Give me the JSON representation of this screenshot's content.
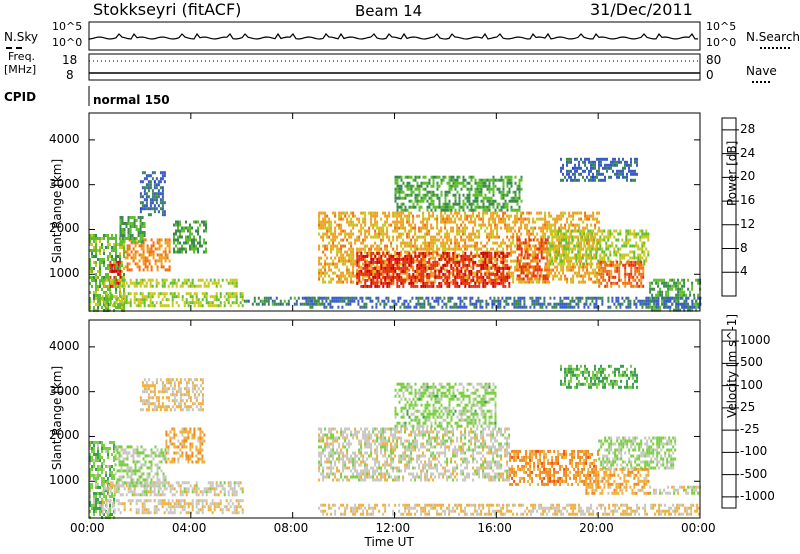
{
  "header": {
    "station": "Stokkseyri (fitACF)",
    "beam": "Beam 14",
    "date": "31/Dec/2011"
  },
  "strips": {
    "nsky_label": "N.Sky",
    "nsky_ticks": [
      "10^5",
      "10^0"
    ],
    "nsearch_label": "N.Search",
    "nsearch_ticks": [
      "10^5",
      "10^0"
    ],
    "freq_label": "Freq.",
    "freq_unit": "[MHz]",
    "freq_ticks": [
      "18",
      "8"
    ],
    "nave_label": "Nave",
    "nave_ticks": [
      "80",
      "0"
    ],
    "cpid_label": "CPID",
    "cpid_value": "normal 150"
  },
  "chart_data": [
    {
      "type": "heatmap",
      "title": "",
      "xlabel": "Time UT",
      "ylabel": "Slant Range [km]",
      "x_ticks": [
        "00:00",
        "04:00",
        "08:00",
        "12:00",
        "16:00",
        "20:00",
        "00:00"
      ],
      "xlim_hours": [
        0,
        24
      ],
      "y_ticks": [
        1000,
        2000,
        3000,
        4000
      ],
      "ylim": [
        180,
        4600
      ],
      "colorbar": {
        "label": "Power [dB]",
        "ticks": [
          "4",
          "8",
          "12",
          "16",
          "20",
          "24",
          "28"
        ],
        "range": [
          0,
          30
        ],
        "colors": [
          "#1a3cf0",
          "#3a5cc8",
          "#3c8a50",
          "#5fbf2e",
          "#c8c820",
          "#f0a020",
          "#f07010",
          "#e83010",
          "#d00000"
        ]
      },
      "regions": [
        {
          "t": [
            0.0,
            1.4
          ],
          "r": [
            200,
            1900
          ],
          "value": 12
        },
        {
          "t": [
            0.8,
            1.2
          ],
          "r": [
            700,
            1300
          ],
          "value": 26
        },
        {
          "t": [
            1.4,
            3.2
          ],
          "r": [
            1100,
            1800
          ],
          "value": 20
        },
        {
          "t": [
            1.2,
            2.2
          ],
          "r": [
            1700,
            2300
          ],
          "value": 10
        },
        {
          "t": [
            2.0,
            3.0
          ],
          "r": [
            2300,
            3300
          ],
          "value": 6
        },
        {
          "t": [
            3.3,
            4.6
          ],
          "r": [
            1500,
            2200
          ],
          "value": 10
        },
        {
          "t": [
            0.5,
            5.8
          ],
          "r": [
            700,
            900
          ],
          "value": 14
        },
        {
          "t": [
            0.5,
            6.0
          ],
          "r": [
            300,
            600
          ],
          "value": 14
        },
        {
          "t": [
            6.0,
            9.0
          ],
          "r": [
            300,
            500
          ],
          "value": 8
        },
        {
          "t": [
            9.0,
            20.0
          ],
          "r": [
            800,
            2400
          ],
          "value": 18
        },
        {
          "t": [
            10.5,
            16.5
          ],
          "r": [
            700,
            1500
          ],
          "value": 26
        },
        {
          "t": [
            16.8,
            18.0
          ],
          "r": [
            900,
            1800
          ],
          "value": 24
        },
        {
          "t": [
            12.0,
            17.0
          ],
          "r": [
            2400,
            3200
          ],
          "value": 10
        },
        {
          "t": [
            18.0,
            22.0
          ],
          "r": [
            1200,
            2000
          ],
          "value": 14
        },
        {
          "t": [
            20.0,
            21.8
          ],
          "r": [
            700,
            1300
          ],
          "value": 22
        },
        {
          "t": [
            22.0,
            24.0
          ],
          "r": [
            200,
            900
          ],
          "value": 10
        },
        {
          "t": [
            18.5,
            21.5
          ],
          "r": [
            3100,
            3600
          ],
          "value": 6
        },
        {
          "t": [
            8.5,
            24.0
          ],
          "r": [
            250,
            500
          ],
          "value": 6
        }
      ]
    },
    {
      "type": "heatmap",
      "title": "",
      "xlabel": "Time UT",
      "ylabel": "Slant Range [km]",
      "x_ticks": [
        "00:00",
        "04:00",
        "08:00",
        "12:00",
        "16:00",
        "20:00",
        "00:00"
      ],
      "xlim_hours": [
        0,
        24
      ],
      "y_ticks": [
        1000,
        2000,
        3000,
        4000
      ],
      "ylim": [
        180,
        4600
      ],
      "colorbar": {
        "label": "Velocity [m s^-1]",
        "ticks": [
          "1000",
          "500",
          "100",
          "25",
          "-25",
          "-100",
          "-500",
          "-1000"
        ],
        "range": [
          -1200,
          1200
        ],
        "colors": [
          "#e80000",
          "#f05010",
          "#f08a20",
          "#f0b040",
          "#c8c8c0",
          "#7ad040",
          "#3ca050",
          "#2a7a6a",
          "#2a4ab0"
        ]
      },
      "regions": [
        {
          "t": [
            0.0,
            1.0
          ],
          "r": [
            200,
            1900
          ],
          "value": 300
        },
        {
          "t": [
            1.0,
            3.0
          ],
          "r": [
            900,
            1800
          ],
          "value": 150
        },
        {
          "t": [
            3.0,
            4.5
          ],
          "r": [
            1400,
            2200
          ],
          "value": -300
        },
        {
          "t": [
            0.5,
            6.0
          ],
          "r": [
            700,
            1000
          ],
          "value": 0
        },
        {
          "t": [
            0.5,
            6.0
          ],
          "r": [
            300,
            600
          ],
          "value": -100
        },
        {
          "t": [
            2.0,
            4.5
          ],
          "r": [
            2600,
            3300
          ],
          "value": -150
        },
        {
          "t": [
            9.0,
            16.5
          ],
          "r": [
            1000,
            2200
          ],
          "value": 0
        },
        {
          "t": [
            12.0,
            16.0
          ],
          "r": [
            2200,
            3200
          ],
          "value": 200
        },
        {
          "t": [
            16.5,
            20.0
          ],
          "r": [
            900,
            1700
          ],
          "value": -500
        },
        {
          "t": [
            19.5,
            22.0
          ],
          "r": [
            700,
            1300
          ],
          "value": -300
        },
        {
          "t": [
            22.0,
            24.0
          ],
          "r": [
            700,
            900
          ],
          "value": 0
        },
        {
          "t": [
            20.0,
            23.0
          ],
          "r": [
            1300,
            2000
          ],
          "value": 150
        },
        {
          "t": [
            18.5,
            21.5
          ],
          "r": [
            3100,
            3600
          ],
          "value": 400
        },
        {
          "t": [
            9.0,
            24.0
          ],
          "r": [
            250,
            500
          ],
          "value": -150
        }
      ]
    }
  ]
}
